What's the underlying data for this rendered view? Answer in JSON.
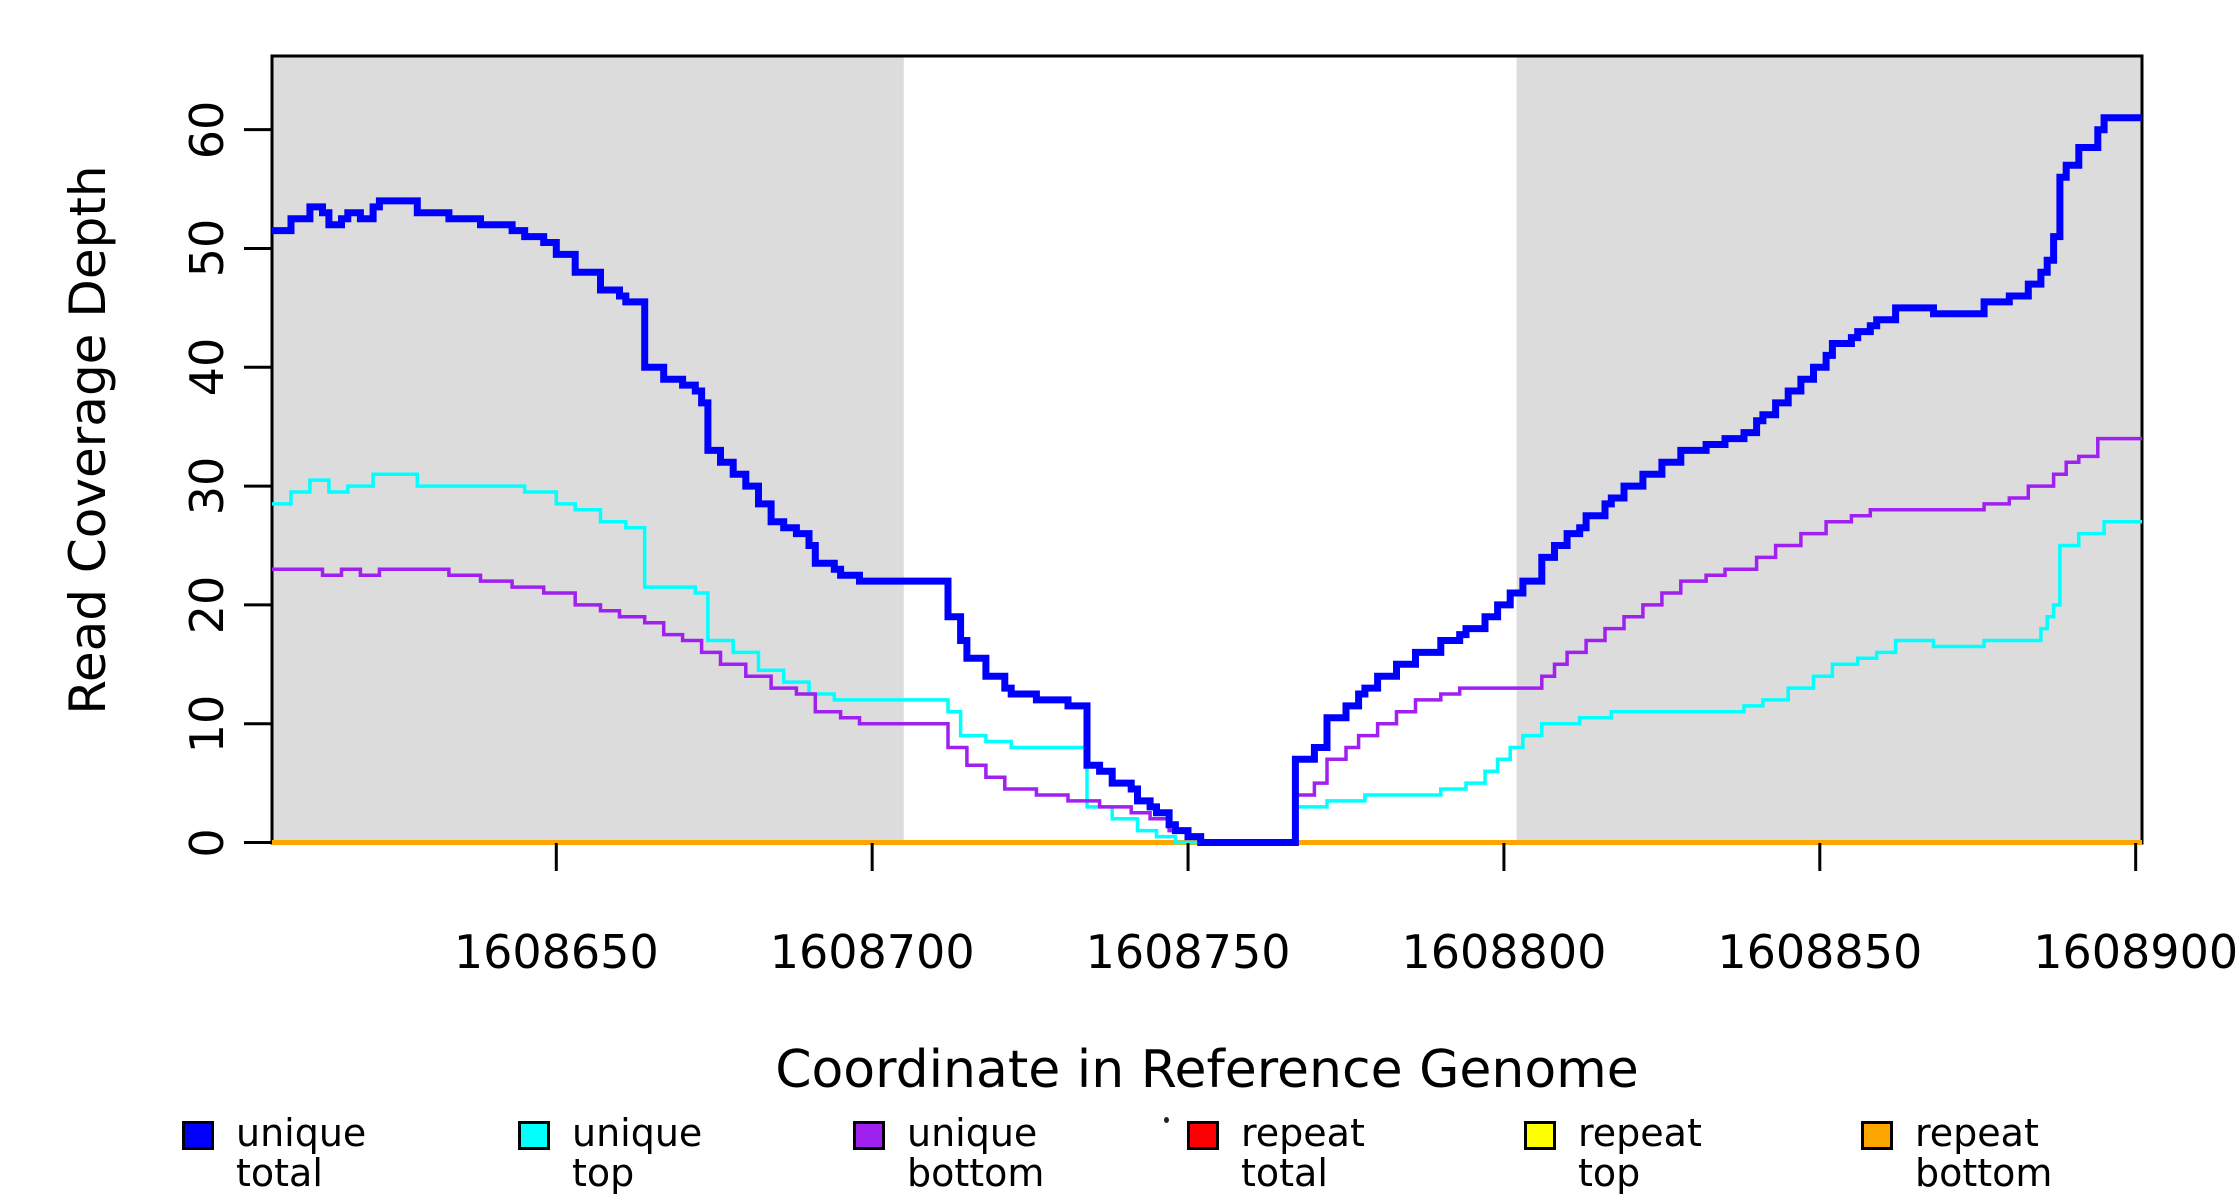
{
  "chart_data": {
    "type": "line",
    "subtype": "step",
    "title": "",
    "xlabel": "Coordinate in Reference Genome",
    "ylabel": "Read Coverage Depth",
    "xlim": [
      1608605,
      1608901
    ],
    "ylim": [
      0,
      66.2
    ],
    "grid": false,
    "background_color": "#FFFFFF",
    "shaded_region_color": "#DCDCDC",
    "shaded_regions": [
      {
        "x0": 1608605,
        "x1": 1608705
      },
      {
        "x0": 1608802,
        "x1": 1608901
      }
    ],
    "x_ticks": {
      "values": [
        1608650,
        1608700,
        1608750,
        1608800,
        1608850,
        1608900
      ],
      "labels": [
        "1608650",
        "1608700",
        "1608750",
        "1608800",
        "1608850",
        "1608900"
      ]
    },
    "y_ticks": {
      "values": [
        0,
        10,
        20,
        30,
        40,
        50,
        60
      ],
      "labels": [
        "0",
        "10",
        "20",
        "30",
        "40",
        "50",
        "60"
      ]
    },
    "series": [
      {
        "name": "repeat total",
        "color": "#FF0000",
        "line_width": 3.5,
        "x": [
          1608605
        ],
        "y": [
          0
        ]
      },
      {
        "name": "repeat top",
        "color": "#FFFF00",
        "line_width": 3.5,
        "x": [
          1608605
        ],
        "y": [
          0
        ]
      },
      {
        "name": "repeat bottom",
        "color": "#FFA500",
        "line_width": 5,
        "x": [
          1608605
        ],
        "y": [
          0
        ]
      },
      {
        "name": "unique top",
        "color": "#00FFFF",
        "line_width": 3.5,
        "x": [
          1608605,
          1608608,
          1608611,
          1608614,
          1608617,
          1608621,
          1608628,
          1608645,
          1608650,
          1608653,
          1608657,
          1608661,
          1608664,
          1608672,
          1608674,
          1608678,
          1608682,
          1608686,
          1608690,
          1608694,
          1608712,
          1608714,
          1608718,
          1608722,
          1608734,
          1608738,
          1608742,
          1608745,
          1608748,
          1608767,
          1608772,
          1608778,
          1608790,
          1608794,
          1608797,
          1608799,
          1608801,
          1608803,
          1608806,
          1608812,
          1608817,
          1608838,
          1608841,
          1608845,
          1608849,
          1608852,
          1608856,
          1608859,
          1608862,
          1608868,
          1608876,
          1608885,
          1608886,
          1608887,
          1608888,
          1608891,
          1608895
        ],
        "y": [
          28.5,
          29.5,
          30.5,
          29.5,
          30,
          31,
          30,
          29.5,
          28.5,
          28,
          27,
          26.5,
          21.5,
          21,
          17,
          16,
          14.5,
          13.5,
          12.5,
          12,
          11,
          9,
          8.5,
          8,
          3,
          2,
          1,
          0.5,
          0,
          3,
          3.5,
          4,
          4.5,
          5,
          6,
          7,
          8,
          9,
          10,
          10.5,
          11,
          11.5,
          12,
          13,
          14,
          15,
          15.5,
          16,
          17,
          16.5,
          17,
          18,
          19,
          20,
          25,
          26,
          27
        ]
      },
      {
        "name": "unique bottom",
        "color": "#A020F0",
        "line_width": 3.5,
        "x": [
          1608605,
          1608613,
          1608616,
          1608619,
          1608622,
          1608633,
          1608638,
          1608643,
          1608648,
          1608653,
          1608657,
          1608660,
          1608664,
          1608667,
          1608670,
          1608673,
          1608676,
          1608680,
          1608684,
          1608688,
          1608691,
          1608695,
          1608698,
          1608712,
          1608715,
          1608718,
          1608721,
          1608726,
          1608731,
          1608736,
          1608741,
          1608744,
          1608747,
          1608750,
          1608752,
          1608767,
          1608770,
          1608772,
          1608775,
          1608777,
          1608780,
          1608783,
          1608786,
          1608790,
          1608793,
          1608806,
          1608808,
          1608810,
          1608813,
          1608816,
          1608819,
          1608822,
          1608825,
          1608828,
          1608832,
          1608835,
          1608840,
          1608843,
          1608847,
          1608851,
          1608855,
          1608858,
          1608876,
          1608880,
          1608883,
          1608887,
          1608889,
          1608891,
          1608894
        ],
        "y": [
          23,
          22.5,
          23,
          22.5,
          23,
          22.5,
          22,
          21.5,
          21,
          20,
          19.5,
          19,
          18.5,
          17.5,
          17,
          16,
          15,
          14,
          13,
          12.5,
          11,
          10.5,
          10,
          8,
          6.5,
          5.5,
          4.5,
          4,
          3.5,
          3,
          2.5,
          2,
          1,
          0.5,
          0,
          4,
          5,
          7,
          8,
          9,
          10,
          11,
          12,
          12.5,
          13,
          14,
          15,
          16,
          17,
          18,
          19,
          20,
          21,
          22,
          22.5,
          23,
          24,
          25,
          26,
          27,
          27.5,
          28,
          28.5,
          29,
          30,
          31,
          32,
          32.5,
          34
        ]
      },
      {
        "name": "unique total",
        "color": "#0000FF",
        "line_width": 7,
        "x": [
          1608605,
          1608608,
          1608611,
          1608613,
          1608614,
          1608616,
          1608617,
          1608619,
          1608621,
          1608622,
          1608628,
          1608633,
          1608638,
          1608643,
          1608645,
          1608648,
          1608650,
          1608653,
          1608657,
          1608660,
          1608661,
          1608664,
          1608667,
          1608670,
          1608672,
          1608673,
          1608674,
          1608676,
          1608678,
          1608680,
          1608682,
          1608684,
          1608686,
          1608688,
          1608690,
          1608691,
          1608694,
          1608695,
          1608698,
          1608712,
          1608714,
          1608715,
          1608718,
          1608721,
          1608722,
          1608726,
          1608731,
          1608734,
          1608736,
          1608738,
          1608741,
          1608742,
          1608744,
          1608745,
          1608747,
          1608748,
          1608750,
          1608752,
          1608767,
          1608770,
          1608772,
          1608775,
          1608777,
          1608778,
          1608780,
          1608783,
          1608786,
          1608790,
          1608793,
          1608794,
          1608797,
          1608799,
          1608801,
          1608803,
          1608806,
          1608808,
          1608810,
          1608812,
          1608813,
          1608816,
          1608817,
          1608819,
          1608822,
          1608825,
          1608828,
          1608832,
          1608835,
          1608838,
          1608840,
          1608841,
          1608843,
          1608845,
          1608847,
          1608849,
          1608851,
          1608852,
          1608855,
          1608856,
          1608858,
          1608859,
          1608862,
          1608868,
          1608876,
          1608880,
          1608883,
          1608885,
          1608886,
          1608887,
          1608888,
          1608889,
          1608891,
          1608894,
          1608895
        ],
        "y": [
          51.5,
          52.5,
          53.5,
          53,
          52,
          52.5,
          53,
          52.5,
          53.5,
          54,
          53,
          52.5,
          52,
          51.5,
          51,
          50.5,
          49.5,
          48,
          46.5,
          46,
          45.5,
          40,
          39,
          38.5,
          38,
          37,
          33,
          32,
          31,
          30,
          28.5,
          27,
          26.5,
          26,
          25,
          23.5,
          23,
          22.5,
          22,
          19,
          17,
          15.5,
          14,
          13,
          12.5,
          12,
          11.5,
          6.5,
          6,
          5,
          4.5,
          3.5,
          3,
          2.5,
          1.5,
          1,
          0.5,
          0,
          7,
          8,
          10.5,
          11.5,
          12.5,
          13,
          14,
          15,
          16,
          17,
          17.5,
          18,
          19,
          20,
          21,
          22,
          24,
          25,
          26,
          26.5,
          27.5,
          28.5,
          29,
          30,
          31,
          32,
          33,
          33.5,
          34,
          34.5,
          35.5,
          36,
          37,
          38,
          39,
          40,
          41,
          42,
          42.5,
          43,
          43.5,
          44,
          45,
          44.5,
          45.5,
          46,
          47,
          48,
          49,
          51,
          56,
          57,
          58.5,
          60,
          61
        ]
      }
    ],
    "legend": {
      "position": "bottom",
      "entries": [
        {
          "label": "unique total",
          "color": "#0000FF"
        },
        {
          "label": "unique top",
          "color": "#00FFFF"
        },
        {
          "label": "unique bottom",
          "color": "#A020F0"
        },
        {
          "label": "repeat total",
          "color": "#FF0000"
        },
        {
          "label": "repeat top",
          "color": "#FFFF00"
        },
        {
          "label": "repeat bottom",
          "color": "#FFA500"
        }
      ]
    }
  }
}
